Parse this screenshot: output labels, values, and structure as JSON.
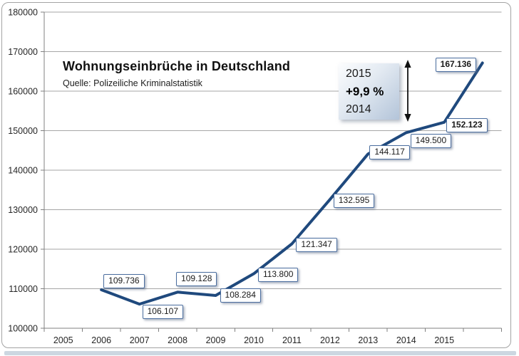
{
  "header": {
    "title": "Wohnungseinbrüche in Deutschland",
    "source_line": "Quelle: Polizeiliche Kriminalstatistik"
  },
  "annotation": {
    "year_top": "2015",
    "percent": "+9,9 %",
    "year_bottom": "2014"
  },
  "colors": {
    "line": "#1f497d",
    "grid": "#a6a6a6",
    "axis": "#808080",
    "tick_text": "#262626",
    "label_border": "#4a6d9e",
    "bottom_band": "#ccd7e1"
  },
  "chart_data": {
    "type": "line",
    "title": "Wohnungseinbrüche in Deutschland",
    "subtitle": "Quelle: Polizeiliche Kriminalstatistik",
    "x_tick_labels": [
      "2005",
      "2006",
      "2007",
      "2008",
      "2009",
      "2010",
      "2011",
      "2012",
      "2013",
      "2014",
      "2015"
    ],
    "series": [
      {
        "name": "Wohnungseinbrüche in Deutschland",
        "values": [
          109736,
          106107,
          109128,
          108284,
          113800,
          121347,
          132595,
          144117,
          149500,
          152123,
          167136
        ]
      }
    ],
    "point_labels": [
      "109.736",
      "106.107",
      "109.128",
      "108.284",
      "113.800",
      "121.347",
      "132.595",
      "144.117",
      "149.500",
      "152.123",
      "167.136"
    ],
    "bold_label_indices": [
      9,
      10
    ],
    "ylim": [
      100000,
      180000
    ],
    "y_tick_step": 10000,
    "y_tick_labels": [
      "100000",
      "110000",
      "120000",
      "130000",
      "140000",
      "150000",
      "160000",
      "170000",
      "180000"
    ],
    "grid": "horizontal",
    "legend_position": "none",
    "annotation": {
      "from_year": "2014",
      "to_year": "2015",
      "change_percent": "+9,9 %"
    }
  }
}
